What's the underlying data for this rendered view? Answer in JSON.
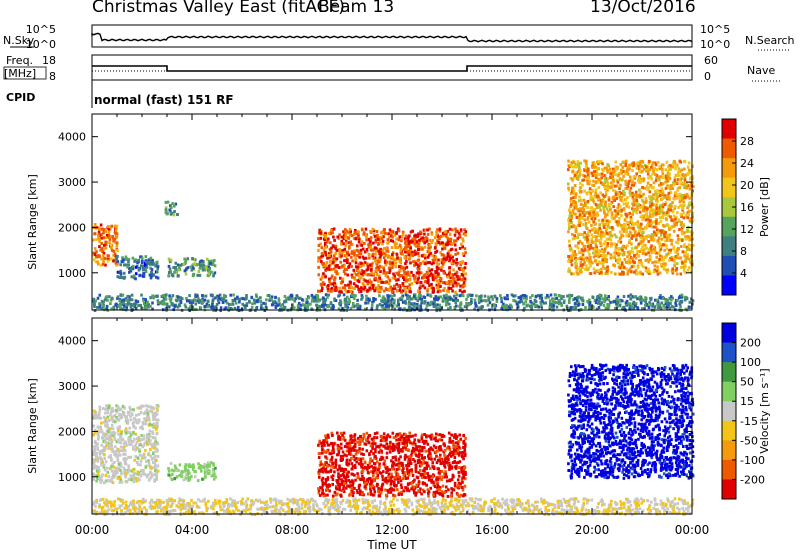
{
  "header": {
    "station": "Christmas Valley East (fitACF)",
    "beam": "Beam 13",
    "date": "13/Oct/2016"
  },
  "strips": {
    "nsky_label": "N.Sky",
    "nsky_ticks": [
      "10^5",
      "10^0"
    ],
    "nsearch_label": "N.Search",
    "nsearch_ticks": [
      "10^5",
      "10^0"
    ],
    "freq_label_1": "Freq.",
    "freq_label_2": "[MHz]",
    "freq_ticks": [
      "18",
      "8"
    ],
    "nave_label": "Nave",
    "nave_ticks": [
      "60",
      "0"
    ],
    "cpid_label": "CPID",
    "cpid_value": "normal (fast) 151 RF",
    "freq_segments_hours": [
      [
        0,
        3.0,
        13.6
      ],
      [
        3.0,
        15.0,
        11.6
      ],
      [
        15.0,
        24.0,
        13.6
      ]
    ]
  },
  "chart_data": [
    {
      "type": "heatmap",
      "quantity": "Power",
      "ylabel": "Slant Range [km]",
      "xlabel": "Time UT",
      "x_ticks": [
        "00:00",
        "04:00",
        "08:00",
        "12:00",
        "16:00",
        "20:00",
        "00:00"
      ],
      "xlim_hours": [
        0,
        24
      ],
      "ylim_km": [
        180,
        4500
      ],
      "y_ticks": [
        1000,
        2000,
        3000,
        4000
      ],
      "colorbar_label": "Power [dB]",
      "colorbar_ticks": [
        4,
        8,
        12,
        16,
        20,
        24,
        28
      ],
      "colorbar_colors": [
        "#0000ff",
        "#1f4fb5",
        "#3f7f7f",
        "#56a35d",
        "#a8c83c",
        "#f2c51a",
        "#f59a0a",
        "#ef5a00",
        "#e00000"
      ],
      "scatter_regions": [
        {
          "t": [
            0.0,
            1.0
          ],
          "r": [
            1200,
            2100
          ],
          "level": 25
        },
        {
          "t": [
            0.9,
            2.6
          ],
          "r": [
            900,
            1400
          ],
          "level": 8
        },
        {
          "t": [
            2.9,
            3.4
          ],
          "r": [
            2300,
            2600
          ],
          "level": 10
        },
        {
          "t": [
            3.0,
            4.9
          ],
          "r": [
            950,
            1350
          ],
          "level": 11
        },
        {
          "t": [
            9.0,
            14.9
          ],
          "r": [
            600,
            2000
          ],
          "level": 27
        },
        {
          "t": [
            19.0,
            24.0
          ],
          "r": [
            1000,
            3500
          ],
          "level": 22
        },
        {
          "t": [
            0.0,
            24.0
          ],
          "r": [
            200,
            550
          ],
          "level": 9
        }
      ]
    },
    {
      "type": "heatmap",
      "quantity": "Velocity",
      "ylabel": "Slant Range [km]",
      "xlabel": "Time UT",
      "x_ticks": [
        "00:00",
        "04:00",
        "08:00",
        "12:00",
        "16:00",
        "20:00",
        "00:00"
      ],
      "xlim_hours": [
        0,
        24
      ],
      "ylim_km": [
        180,
        4500
      ],
      "y_ticks": [
        1000,
        2000,
        3000,
        4000
      ],
      "colorbar_label": "Velocity [m s^-1]",
      "colorbar_ticks": [
        200,
        100,
        50,
        15,
        -15,
        -50,
        -100,
        -200
      ],
      "colorbar_colors": [
        "#0000e0",
        "#1e52c8",
        "#3f9a3f",
        "#7fd060",
        "#c8c8c8",
        "#f2c518",
        "#f59a0a",
        "#ef5a00",
        "#e00000"
      ],
      "scatter_regions": [
        {
          "t": [
            0.0,
            2.6
          ],
          "r": [
            900,
            2600
          ],
          "v": 0
        },
        {
          "t": [
            3.0,
            4.9
          ],
          "r": [
            950,
            1350
          ],
          "v": 40
        },
        {
          "t": [
            9.0,
            14.9
          ],
          "r": [
            600,
            2000
          ],
          "v": -170
        },
        {
          "t": [
            19.0,
            24.0
          ],
          "r": [
            1000,
            3500
          ],
          "v": 180
        },
        {
          "t": [
            0.0,
            24.0
          ],
          "r": [
            200,
            550
          ],
          "v": -20
        }
      ]
    }
  ],
  "colors": {
    "axis": "#000000",
    "background": "#ffffff"
  }
}
